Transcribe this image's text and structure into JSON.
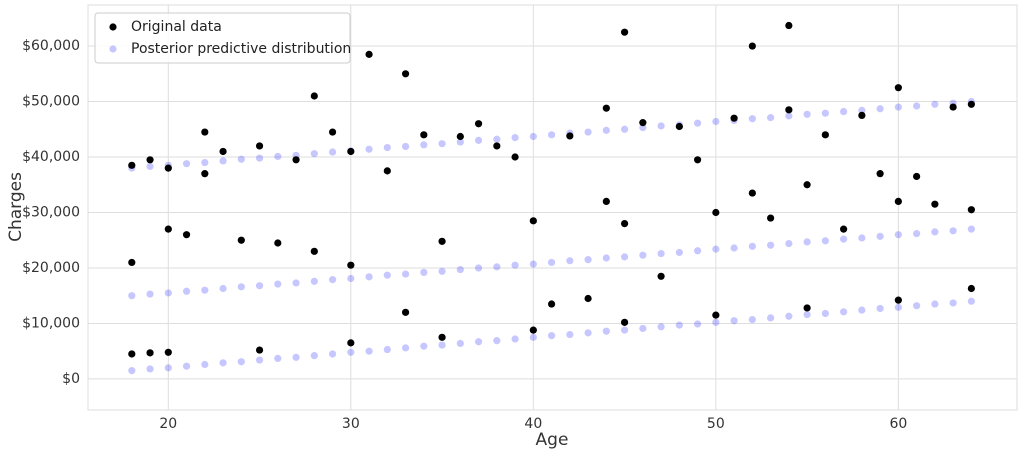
{
  "chart_data": {
    "type": "scatter",
    "xlabel": "Age",
    "ylabel": "Charges",
    "xlim": [
      15.6,
      66.5
    ],
    "ylim": [
      -5600,
      67400
    ],
    "xticks": [
      20,
      30,
      40,
      50,
      60
    ],
    "yticks": [
      {
        "value": 0,
        "label": "$0"
      },
      {
        "value": 10000,
        "label": "$10,000"
      },
      {
        "value": 20000,
        "label": "$20,000"
      },
      {
        "value": 30000,
        "label": "$30,000"
      },
      {
        "value": 40000,
        "label": "$40,000"
      },
      {
        "value": 50000,
        "label": "$50,000"
      },
      {
        "value": 60000,
        "label": "$60,000"
      }
    ],
    "grid": true,
    "legend": "upper left",
    "series": [
      {
        "name": "Posterior predictive distribution",
        "color": "#0000ff",
        "alpha": 0.22,
        "x": [
          18,
          19,
          20,
          21,
          22,
          23,
          24,
          25,
          26,
          27,
          28,
          29,
          30,
          31,
          32,
          33,
          34,
          35,
          36,
          37,
          38,
          39,
          40,
          41,
          42,
          43,
          44,
          45,
          46,
          47,
          48,
          49,
          50,
          51,
          52,
          53,
          54,
          55,
          56,
          57,
          58,
          59,
          60,
          61,
          62,
          63,
          64,
          18,
          19,
          20,
          21,
          22,
          23,
          24,
          25,
          26,
          27,
          28,
          29,
          30,
          31,
          32,
          33,
          34,
          35,
          36,
          37,
          38,
          39,
          40,
          41,
          42,
          43,
          44,
          45,
          46,
          47,
          48,
          49,
          50,
          51,
          52,
          53,
          54,
          55,
          56,
          57,
          58,
          59,
          60,
          61,
          62,
          63,
          64,
          18,
          19,
          20,
          21,
          22,
          23,
          24,
          25,
          26,
          27,
          28,
          29,
          30,
          31,
          32,
          33,
          34,
          35,
          36,
          37,
          38,
          39,
          40,
          41,
          42,
          43,
          44,
          45,
          46,
          47,
          48,
          49,
          50,
          51,
          52,
          53,
          54,
          55,
          56,
          57,
          58,
          59,
          60,
          61,
          62,
          63,
          64
        ],
        "values": [
          1500,
          1800,
          2000,
          2300,
          2600,
          2900,
          3100,
          3400,
          3700,
          3900,
          4200,
          4500,
          4800,
          5000,
          5300,
          5600,
          5900,
          6100,
          6400,
          6700,
          6900,
          7200,
          7500,
          7800,
          8000,
          8300,
          8600,
          8800,
          9100,
          9400,
          9700,
          9900,
          10200,
          10500,
          10700,
          11000,
          11300,
          11600,
          11800,
          12100,
          12400,
          12700,
          12900,
          13200,
          13500,
          13700,
          14000,
          15000,
          15300,
          15500,
          15800,
          16000,
          16300,
          16600,
          16800,
          17100,
          17300,
          17600,
          17900,
          18100,
          18400,
          18700,
          18900,
          19200,
          19400,
          19700,
          20000,
          20200,
          20500,
          20700,
          21000,
          21300,
          21500,
          21800,
          22000,
          22300,
          22600,
          22800,
          23100,
          23400,
          23600,
          23900,
          24100,
          24400,
          24700,
          24900,
          25200,
          25400,
          25700,
          26000,
          26200,
          26500,
          26700,
          27000,
          38000,
          38300,
          38500,
          38800,
          39000,
          39300,
          39600,
          39800,
          40100,
          40300,
          40600,
          40900,
          41100,
          41400,
          41700,
          41900,
          42200,
          42400,
          42700,
          43000,
          43200,
          43500,
          43700,
          44000,
          44300,
          44500,
          44800,
          45000,
          45300,
          45600,
          45800,
          46100,
          46400,
          46600,
          46900,
          47100,
          47400,
          47700,
          47900,
          48200,
          48400,
          48700,
          49000,
          49200,
          49500,
          49700,
          50000
        ]
      },
      {
        "name": "Original data",
        "color": "#000000",
        "alpha": 1,
        "x": [
          18,
          18,
          18,
          19,
          19,
          20,
          20,
          21,
          22,
          22,
          23,
          24,
          25,
          26,
          27,
          28,
          28,
          29,
          30,
          30,
          31,
          32,
          33,
          33,
          34,
          35,
          36,
          37,
          38,
          39,
          40,
          41,
          42,
          43,
          44,
          44,
          45,
          45,
          46,
          47,
          48,
          49,
          50,
          51,
          52,
          52,
          53,
          54,
          54,
          55,
          56,
          57,
          58,
          59,
          60,
          60,
          61,
          62,
          63,
          64,
          64,
          20,
          25,
          30,
          35,
          40,
          45,
          50,
          55,
          60,
          64
        ],
        "values": [
          38500,
          21000,
          4500,
          39500,
          4700,
          38000,
          27000,
          26000,
          44500,
          37000,
          41000,
          25000,
          42000,
          24500,
          39500,
          51000,
          23000,
          44500,
          41000,
          20500,
          58500,
          37500,
          55000,
          12000,
          44000,
          24800,
          43700,
          46000,
          42000,
          40000,
          28500,
          13500,
          43800,
          14500,
          48800,
          32000,
          62500,
          28000,
          46200,
          18500,
          45500,
          39500,
          30000,
          47000,
          60000,
          33500,
          29000,
          63700,
          48500,
          35000,
          44000,
          27000,
          47500,
          37000,
          52500,
          32000,
          36500,
          31500,
          49000,
          49500,
          30500,
          4800,
          5200,
          6500,
          7500,
          8800,
          10200,
          11500,
          12800,
          14200,
          16300
        ]
      }
    ]
  }
}
